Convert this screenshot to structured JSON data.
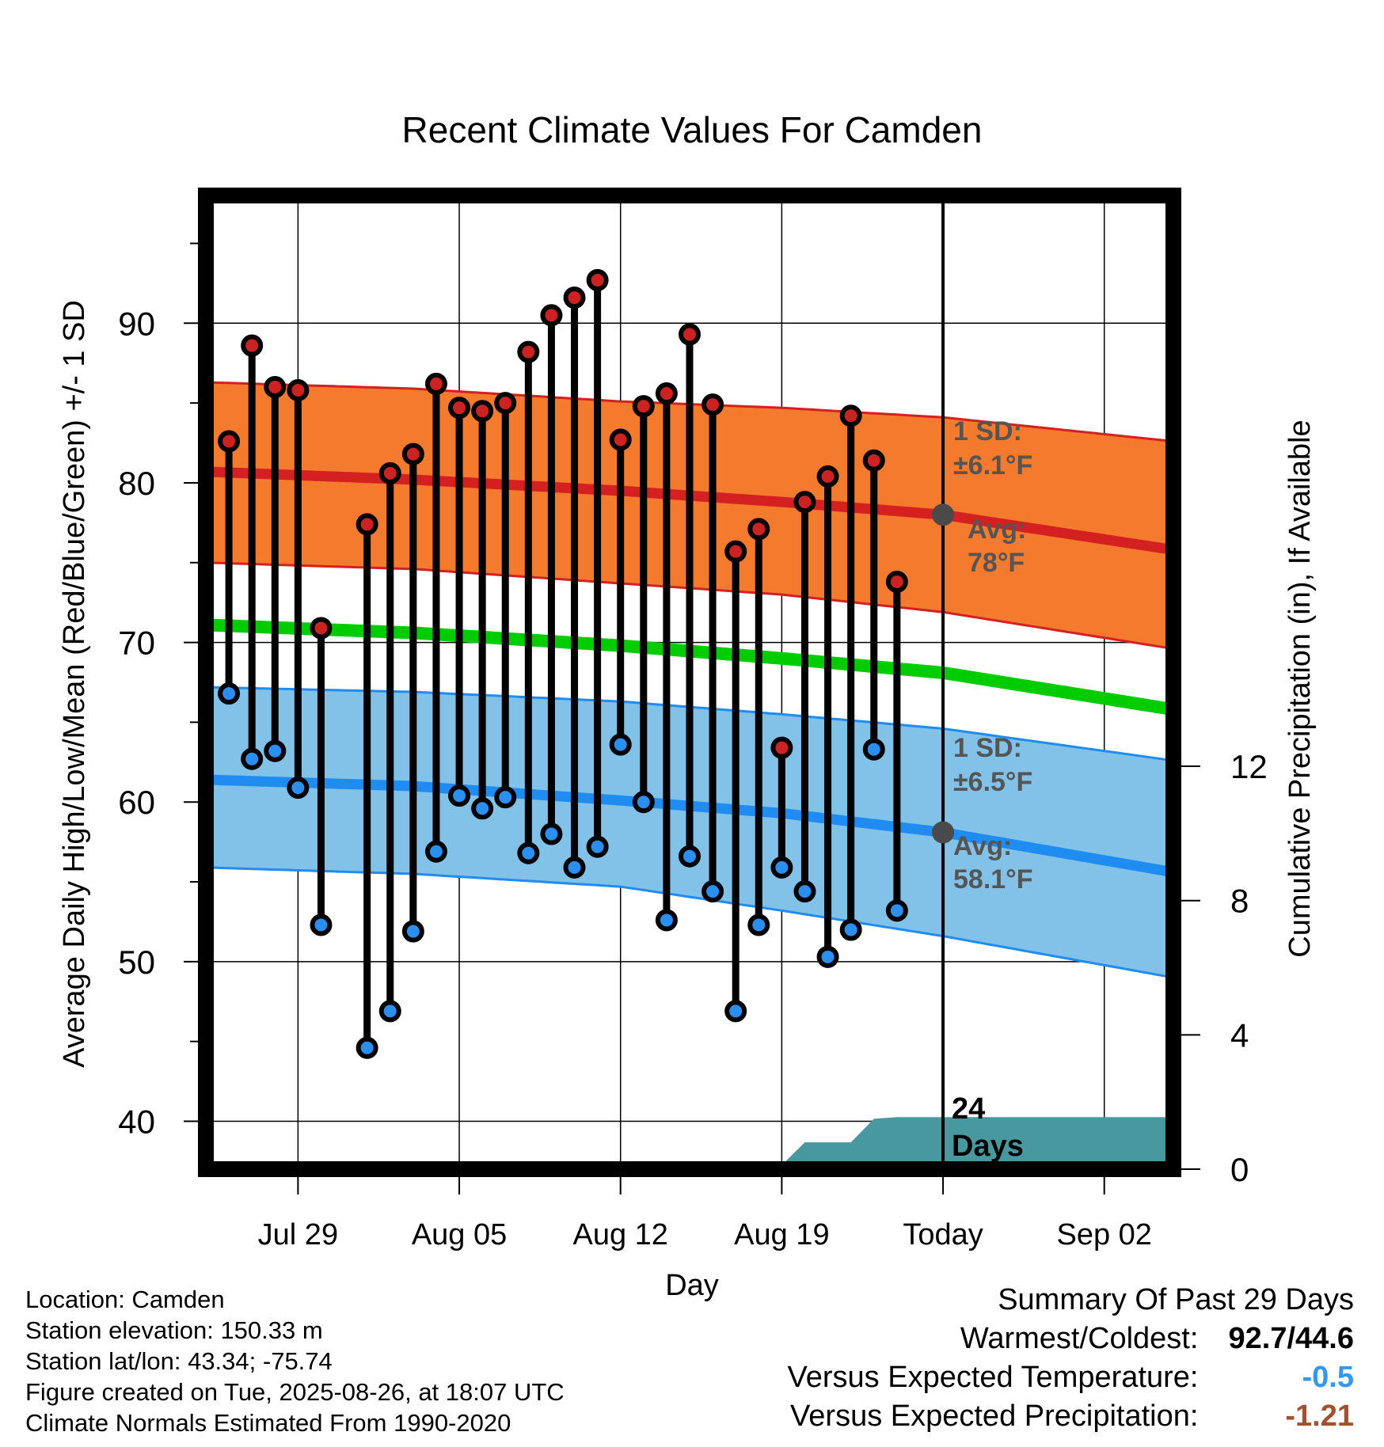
{
  "chart_data": {
    "type": "line",
    "title": "Recent Climate Values For Camden",
    "xlabel": "Day",
    "ylabel": "Average Daily High/Low/Mean (Red/Blue/Green) +/- 1 SD",
    "y2label": "Cumulative Precipitation (in), If Available",
    "ylim": [
      37,
      98
    ],
    "y2lim": [
      0,
      29
    ],
    "xlim": [
      "2025-07-25",
      "2025-09-05"
    ],
    "x_ticks": [
      {
        "date": "2025-07-29",
        "label": "Jul 29"
      },
      {
        "date": "2025-08-05",
        "label": "Aug 05"
      },
      {
        "date": "2025-08-12",
        "label": "Aug 12"
      },
      {
        "date": "2025-08-19",
        "label": "Aug 19"
      },
      {
        "date": "2025-08-26",
        "label": "Today"
      },
      {
        "date": "2025-09-02",
        "label": "Sep 02"
      }
    ],
    "y_ticks": [
      40,
      50,
      60,
      70,
      80,
      90
    ],
    "y2_ticks": [
      0,
      4,
      8,
      12
    ],
    "grid": true,
    "today": "2025-08-26",
    "colors": {
      "high_band": "#f47a2e",
      "high_line": "#d42020",
      "high_point": "#cc2222",
      "low_band": "#82c1e8",
      "low_line": "#1e8cf0",
      "low_point": "#2b8ff0",
      "mean_line": "#00cc00",
      "precip": "#48999f",
      "annotation": "#555555",
      "today_marker": "#4a4a4a",
      "negative_temp": "#3399ee",
      "negative_precip": "#a0522d"
    },
    "daily": [
      {
        "date": "2025-07-26",
        "high": 82.6,
        "low": 66.8
      },
      {
        "date": "2025-07-27",
        "high": 88.6,
        "low": 62.7
      },
      {
        "date": "2025-07-28",
        "high": 86.0,
        "low": 63.2
      },
      {
        "date": "2025-07-29",
        "high": 85.8,
        "low": 60.9
      },
      {
        "date": "2025-07-30",
        "high": 70.9,
        "low": 52.3
      },
      {
        "date": "2025-08-01",
        "high": 77.4,
        "low": 44.6
      },
      {
        "date": "2025-08-02",
        "high": 80.6,
        "low": 46.9
      },
      {
        "date": "2025-08-03",
        "high": 81.8,
        "low": 51.9
      },
      {
        "date": "2025-08-04",
        "high": 86.2,
        "low": 56.9
      },
      {
        "date": "2025-08-05",
        "high": 84.7,
        "low": 60.4
      },
      {
        "date": "2025-08-06",
        "high": 84.5,
        "low": 59.6
      },
      {
        "date": "2025-08-07",
        "high": 85.0,
        "low": 60.3
      },
      {
        "date": "2025-08-08",
        "high": 88.2,
        "low": 56.8
      },
      {
        "date": "2025-08-09",
        "high": 90.5,
        "low": 58.0
      },
      {
        "date": "2025-08-10",
        "high": 91.6,
        "low": 55.9
      },
      {
        "date": "2025-08-11",
        "high": 92.7,
        "low": 57.2
      },
      {
        "date": "2025-08-12",
        "high": 82.7,
        "low": 63.6
      },
      {
        "date": "2025-08-13",
        "high": 84.8,
        "low": 60.0
      },
      {
        "date": "2025-08-14",
        "high": 85.6,
        "low": 52.6
      },
      {
        "date": "2025-08-15",
        "high": 89.3,
        "low": 56.6
      },
      {
        "date": "2025-08-16",
        "high": 84.9,
        "low": 54.4
      },
      {
        "date": "2025-08-17",
        "high": 75.7,
        "low": 46.9
      },
      {
        "date": "2025-08-18",
        "high": 77.1,
        "low": 52.3
      },
      {
        "date": "2025-08-19",
        "high": 63.4,
        "low": 55.9
      },
      {
        "date": "2025-08-20",
        "high": 78.8,
        "low": 54.4
      },
      {
        "date": "2025-08-21",
        "high": 80.4,
        "low": 50.3
      },
      {
        "date": "2025-08-22",
        "high": 84.2,
        "low": 52.0
      },
      {
        "date": "2025-08-23",
        "high": 81.4,
        "low": 63.3
      },
      {
        "date": "2025-08-24",
        "high": 73.8,
        "low": 53.2
      }
    ],
    "normals": [
      {
        "date": "2025-07-25",
        "high_avg": 80.7,
        "high_upper": 86.3,
        "high_lower": 75.0,
        "low_avg": 61.4,
        "low_upper": 67.2,
        "low_lower": 55.9,
        "mean": 71.1
      },
      {
        "date": "2025-08-03",
        "high_avg": 80.2,
        "high_upper": 85.9,
        "high_lower": 74.6,
        "low_avg": 61.0,
        "low_upper": 66.9,
        "low_lower": 55.5,
        "mean": 70.6
      },
      {
        "date": "2025-08-12",
        "high_avg": 79.5,
        "high_upper": 85.1,
        "high_lower": 73.7,
        "low_avg": 60.1,
        "low_upper": 66.3,
        "low_lower": 54.7,
        "mean": 69.8
      },
      {
        "date": "2025-08-19",
        "high_avg": 78.8,
        "high_upper": 84.7,
        "high_lower": 73.0,
        "low_avg": 59.3,
        "low_upper": 65.5,
        "low_lower": 53.2,
        "mean": 69.0
      },
      {
        "date": "2025-08-26",
        "high_avg": 78.0,
        "high_upper": 84.1,
        "high_lower": 71.9,
        "low_avg": 58.1,
        "low_upper": 64.6,
        "low_lower": 51.6,
        "mean": 68.1
      },
      {
        "date": "2025-09-05",
        "high_avg": 75.8,
        "high_upper": 82.6,
        "high_lower": 69.6,
        "low_avg": 55.6,
        "low_upper": 62.6,
        "low_lower": 49.0,
        "mean": 65.8
      }
    ],
    "precip_cumulative": [
      {
        "date": "2025-07-25",
        "value": 0.0
      },
      {
        "date": "2025-08-13",
        "value": 0.0
      },
      {
        "date": "2025-08-14",
        "value": 0.05
      },
      {
        "date": "2025-08-18",
        "value": 0.07
      },
      {
        "date": "2025-08-19",
        "value": 0.12
      },
      {
        "date": "2025-08-20",
        "value": 0.8
      },
      {
        "date": "2025-08-22",
        "value": 0.8
      },
      {
        "date": "2025-08-23",
        "value": 1.5
      },
      {
        "date": "2025-08-24",
        "value": 1.55
      },
      {
        "date": "2025-09-05",
        "value": 1.55
      }
    ],
    "annotations": {
      "high_sd_label": "1 SD:",
      "high_sd_value": "±6.1°F",
      "high_avg_label": "Avg:",
      "high_avg_value": "78°F",
      "low_sd_label": "1 SD:",
      "low_sd_value": "±6.5°F",
      "low_avg_label": "Avg:",
      "low_avg_value": "58.1°F",
      "precip_days_count": "24",
      "precip_days_word": "Days"
    }
  },
  "station": {
    "location": "Location: Camden",
    "elevation": "Station elevation: 150.33 m",
    "latlon": "Station lat/lon: 43.34; -75.74",
    "created": "Figure created on Tue, 2025-08-26, at 18:07 UTC",
    "normals": "Climate Normals Estimated From 1990-2020"
  },
  "summary": {
    "title": "Summary Of Past 29 Days",
    "warmest_coldest_label": "Warmest/Coldest:",
    "warmest_coldest_value": "92.7/44.6",
    "temp_label": "Versus Expected Temperature:",
    "temp_value": "-0.5",
    "precip_label": "Versus Expected Precipitation:",
    "precip_value": "-1.21"
  }
}
